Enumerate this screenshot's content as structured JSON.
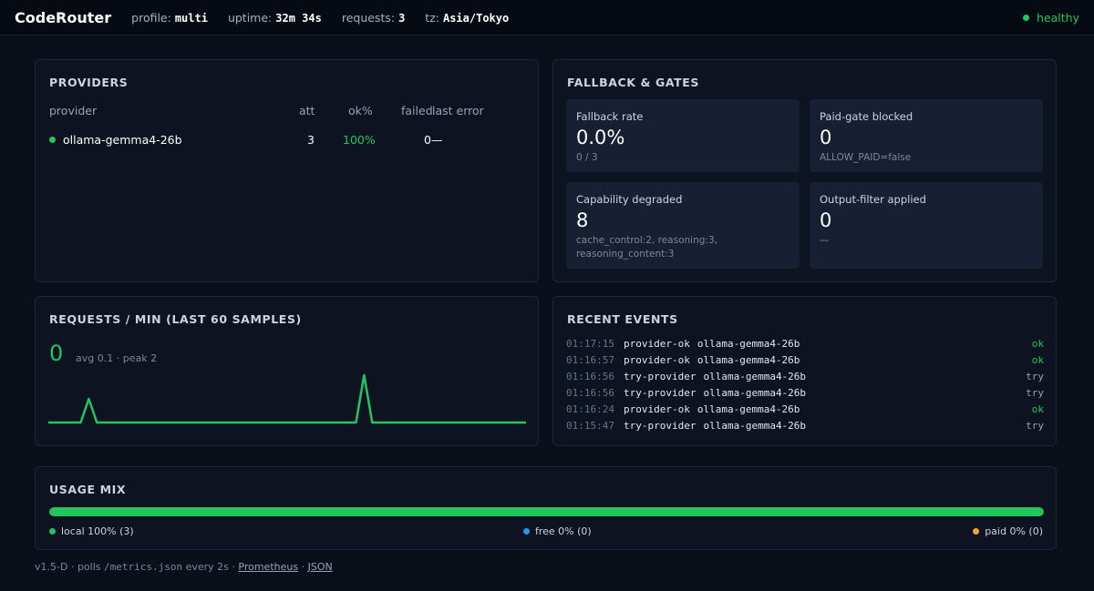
{
  "header": {
    "brand": "CodeRouter",
    "profile_label": "profile:",
    "profile_value": "multi",
    "uptime_label": "uptime:",
    "uptime_value": "32m 34s",
    "requests_label": "requests:",
    "requests_value": "3",
    "tz_label": "tz:",
    "tz_value": "Asia/Tokyo",
    "status": "healthy",
    "status_color": "#22c55e"
  },
  "providers": {
    "title": "PROVIDERS",
    "columns": [
      "provider",
      "att",
      "ok%",
      "failed",
      "last error"
    ],
    "rows": [
      {
        "name": "ollama-gemma4-26b",
        "att": "3",
        "ok_pct": "100%",
        "failed": "0",
        "last_error": "—"
      }
    ]
  },
  "fallback": {
    "title": "FALLBACK & GATES",
    "tiles": [
      {
        "label": "Fallback rate",
        "value": "0.0%",
        "sub": "0 / 3"
      },
      {
        "label": "Paid-gate blocked",
        "value": "0",
        "sub": "ALLOW_PAID=false"
      },
      {
        "label": "Capability degraded",
        "value": "8",
        "sub": "cache_control:2, reasoning:3, reasoning_content:3"
      },
      {
        "label": "Output-filter applied",
        "value": "0",
        "sub": "—"
      }
    ]
  },
  "requests": {
    "title": "REQUESTS / MIN (LAST 60 SAMPLES)",
    "current": "0",
    "summary": "avg 0.1 · peak 2"
  },
  "chart_data": {
    "type": "line",
    "title": "REQUESTS / MIN (LAST 60 SAMPLES)",
    "x": [
      0,
      1,
      2,
      3,
      4,
      5,
      6,
      7,
      8,
      9,
      10,
      11,
      12,
      13,
      14,
      15,
      16,
      17,
      18,
      19,
      20,
      21,
      22,
      23,
      24,
      25,
      26,
      27,
      28,
      29,
      30,
      31,
      32,
      33,
      34,
      35,
      36,
      37,
      38,
      39,
      40,
      41,
      42,
      43,
      44,
      45,
      46,
      47,
      48,
      49,
      50,
      51,
      52,
      53,
      54,
      55,
      56,
      57,
      58,
      59
    ],
    "values": [
      0,
      0,
      0,
      0,
      0,
      1,
      0,
      0,
      0,
      0,
      0,
      0,
      0,
      0,
      0,
      0,
      0,
      0,
      0,
      0,
      0,
      0,
      0,
      0,
      0,
      0,
      0,
      0,
      0,
      0,
      0,
      0,
      0,
      0,
      0,
      0,
      0,
      0,
      0,
      2,
      0,
      0,
      0,
      0,
      0,
      0,
      0,
      0,
      0,
      0,
      0,
      0,
      0,
      0,
      0,
      0,
      0,
      0,
      0,
      0
    ],
    "ylim": [
      0,
      2
    ],
    "color": "#22c55e",
    "grid": false
  },
  "events": {
    "title": "RECENT EVENTS",
    "items": [
      {
        "time": "01:17:15",
        "kind": "provider-ok",
        "provider": "ollama-gemma4-26b",
        "status": "ok"
      },
      {
        "time": "01:16:57",
        "kind": "provider-ok",
        "provider": "ollama-gemma4-26b",
        "status": "ok"
      },
      {
        "time": "01:16:56",
        "kind": "try-provider",
        "provider": "ollama-gemma4-26b",
        "status": "try"
      },
      {
        "time": "01:16:56",
        "kind": "try-provider",
        "provider": "ollama-gemma4-26b",
        "status": "try"
      },
      {
        "time": "01:16:24",
        "kind": "provider-ok",
        "provider": "ollama-gemma4-26b",
        "status": "ok"
      },
      {
        "time": "01:15:47",
        "kind": "try-provider",
        "provider": "ollama-gemma4-26b",
        "status": "try"
      }
    ]
  },
  "usage": {
    "title": "USAGE MIX",
    "local_fraction": 1.0,
    "legend": [
      {
        "label": "local 100% (3)",
        "color": "#22c55e"
      },
      {
        "label": "free 0% (0)",
        "color": "#1d9bf0"
      },
      {
        "label": "paid 0% (0)",
        "color": "#f5a524"
      }
    ]
  },
  "footer": {
    "version": "v1.5-D",
    "sep1": " · polls ",
    "path": "/metrics.json",
    "every": " every 2s · ",
    "link1": "Prometheus",
    "sep2": " · ",
    "link2": "JSON"
  }
}
